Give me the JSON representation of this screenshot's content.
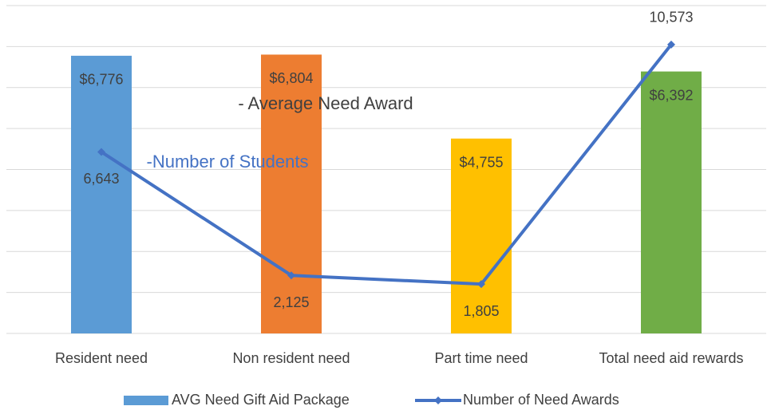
{
  "chart_data": {
    "type": "bar",
    "categories": [
      "Resident need",
      "Non resident need",
      "Part time need",
      "Total need aid rewards"
    ],
    "series": [
      {
        "name": "AVG Need Gift Aid Package",
        "type": "bar",
        "color": "#5b9bd5",
        "colors": [
          "#5b9bd5",
          "#ed7d31",
          "#ffc000",
          "#70ad47"
        ],
        "values": [
          6776,
          6804,
          4755,
          6392
        ],
        "value_labels": [
          "$6,776",
          "$6,804",
          "$4,755",
          "$6,392"
        ]
      },
      {
        "name": "Number of Need Awards",
        "type": "line",
        "axis": "y2",
        "color": "#4472c4",
        "values": [
          6643,
          2125,
          1805,
          10573
        ],
        "value_labels": [
          "6,643",
          "2,125",
          "1,805",
          "10,573"
        ]
      }
    ],
    "annotations": [
      {
        "text": "- Average Need Award",
        "color": "#404040"
      },
      {
        "text": "-Number of Students",
        "color": "#4472c4"
      }
    ],
    "ylim": [
      0,
      8000
    ],
    "yticks": [
      0,
      1000,
      2000,
      3000,
      4000,
      5000,
      6000,
      7000,
      8000
    ],
    "y2lim": [
      0,
      12000
    ],
    "grid": true,
    "legend": "bottom"
  }
}
